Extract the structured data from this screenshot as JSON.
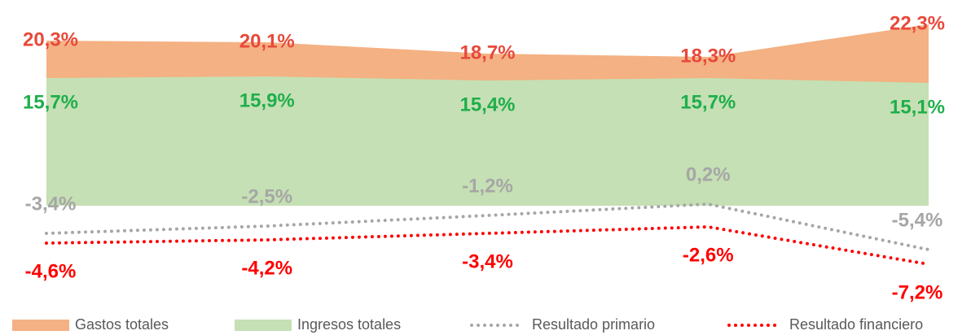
{
  "chart_data": {
    "type": "line",
    "categories": [
      null,
      null,
      null,
      null,
      null
    ],
    "ylim": [
      -12,
      23
    ],
    "series": [
      {
        "name": "Gastos totales",
        "type": "area",
        "color": "#f4b183",
        "label_color": "#e8493a",
        "values": [
          20.3,
          20.1,
          18.7,
          18.3,
          22.3
        ],
        "value_labels": [
          "20,3%",
          "20,1%",
          "18,7%",
          "18,3%",
          "22,3%"
        ]
      },
      {
        "name": "Ingresos totales",
        "type": "area",
        "color": "#c5e0b4",
        "label_color": "#1fae4b",
        "values": [
          15.7,
          15.9,
          15.4,
          15.7,
          15.1
        ],
        "value_labels": [
          "15,7%",
          "15,9%",
          "15,4%",
          "15,7%",
          "15,1%"
        ]
      },
      {
        "name": "Resultado primario",
        "type": "dotted",
        "color": "#a6a6a6",
        "label_color": "#a6a6a6",
        "values": [
          -3.4,
          -2.5,
          -1.2,
          0.2,
          -5.4
        ],
        "value_labels": [
          "-3,4%",
          "-2,5%",
          "-1,2%",
          "0,2%",
          "-5,4%"
        ]
      },
      {
        "name": "Resultado financiero",
        "type": "dotted",
        "color": "#ff0000",
        "label_color": "#ff0000",
        "values": [
          -4.6,
          -4.2,
          -3.4,
          -2.6,
          -7.2
        ],
        "value_labels": [
          "-4,6%",
          "-4,2%",
          "-3,4%",
          "-2,6%",
          "-7,2%"
        ]
      }
    ]
  }
}
